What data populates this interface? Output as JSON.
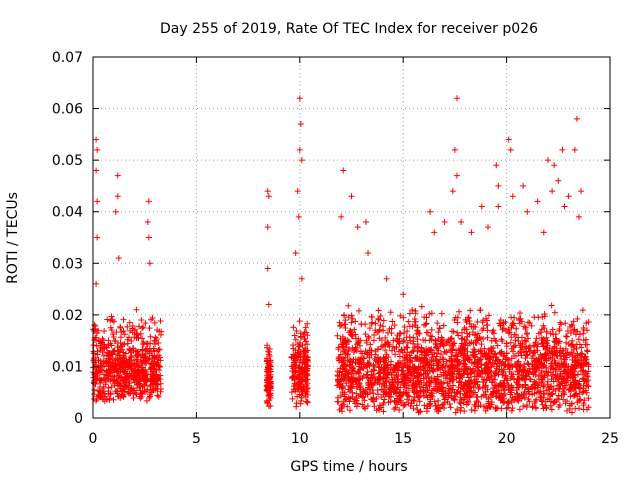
{
  "chart_data": {
    "type": "scatter",
    "title": "Day 255 of 2019, Rate Of TEC Index for receiver p026",
    "xlabel": "GPS time / hours",
    "ylabel": "ROTI / TECUs",
    "xlim": [
      0,
      25
    ],
    "ylim": [
      0,
      0.07
    ],
    "xticks": [
      "0",
      "5",
      "10",
      "15",
      "20",
      "25"
    ],
    "yticks": [
      "0",
      "0.01",
      "0.02",
      "0.03",
      "0.04",
      "0.05",
      "0.06",
      "0.07"
    ],
    "grid": true,
    "marker": "+",
    "color": "#ff0000",
    "clusters": [
      {
        "x": [
          0.0,
          3.3
        ],
        "typical": [
          0.003,
          0.02
        ],
        "peaks": [
          [
            0.15,
            0.054
          ],
          [
            0.2,
            0.052
          ],
          [
            0.15,
            0.048
          ],
          [
            0.2,
            0.042
          ],
          [
            0.2,
            0.035
          ],
          [
            0.15,
            0.026
          ],
          [
            1.2,
            0.047
          ],
          [
            1.2,
            0.043
          ],
          [
            1.1,
            0.04
          ],
          [
            1.25,
            0.031
          ],
          [
            2.7,
            0.042
          ],
          [
            2.65,
            0.038
          ],
          [
            2.7,
            0.035
          ],
          [
            2.75,
            0.03
          ],
          [
            2.1,
            0.021
          ]
        ]
      },
      {
        "x": [
          8.4,
          8.6
        ],
        "typical": [
          0.002,
          0.015
        ],
        "peaks": [
          [
            8.45,
            0.044
          ],
          [
            8.5,
            0.043
          ],
          [
            8.45,
            0.037
          ],
          [
            8.45,
            0.029
          ],
          [
            8.5,
            0.022
          ]
        ]
      },
      {
        "x": [
          9.6,
          10.4
        ],
        "typical": [
          0.002,
          0.02
        ],
        "peaks": [
          [
            10.0,
            0.062
          ],
          [
            10.05,
            0.057
          ],
          [
            10.0,
            0.052
          ],
          [
            10.1,
            0.05
          ],
          [
            9.9,
            0.044
          ],
          [
            9.95,
            0.039
          ],
          [
            9.8,
            0.032
          ],
          [
            10.1,
            0.027
          ]
        ]
      },
      {
        "x": [
          11.8,
          24.0
        ],
        "typical": [
          0.001,
          0.022
        ],
        "peaks": [
          [
            12.1,
            0.048
          ],
          [
            12.5,
            0.043
          ],
          [
            12.0,
            0.039
          ],
          [
            13.2,
            0.038
          ],
          [
            12.8,
            0.037
          ],
          [
            13.3,
            0.032
          ],
          [
            14.2,
            0.027
          ],
          [
            15.0,
            0.024
          ],
          [
            16.3,
            0.04
          ],
          [
            16.5,
            0.036
          ],
          [
            17.0,
            0.038
          ],
          [
            17.6,
            0.062
          ],
          [
            17.5,
            0.052
          ],
          [
            17.6,
            0.047
          ],
          [
            17.4,
            0.044
          ],
          [
            17.8,
            0.038
          ],
          [
            18.3,
            0.036
          ],
          [
            18.8,
            0.041
          ],
          [
            19.1,
            0.037
          ],
          [
            19.5,
            0.049
          ],
          [
            19.6,
            0.045
          ],
          [
            19.6,
            0.041
          ],
          [
            20.1,
            0.054
          ],
          [
            20.2,
            0.052
          ],
          [
            20.3,
            0.043
          ],
          [
            20.8,
            0.045
          ],
          [
            21.0,
            0.04
          ],
          [
            21.5,
            0.042
          ],
          [
            22.0,
            0.05
          ],
          [
            22.3,
            0.049
          ],
          [
            22.5,
            0.046
          ],
          [
            22.7,
            0.052
          ],
          [
            22.2,
            0.044
          ],
          [
            23.0,
            0.043
          ],
          [
            23.4,
            0.058
          ],
          [
            23.3,
            0.052
          ],
          [
            23.6,
            0.044
          ],
          [
            23.5,
            0.039
          ],
          [
            21.8,
            0.036
          ],
          [
            22.8,
            0.041
          ]
        ]
      }
    ]
  }
}
